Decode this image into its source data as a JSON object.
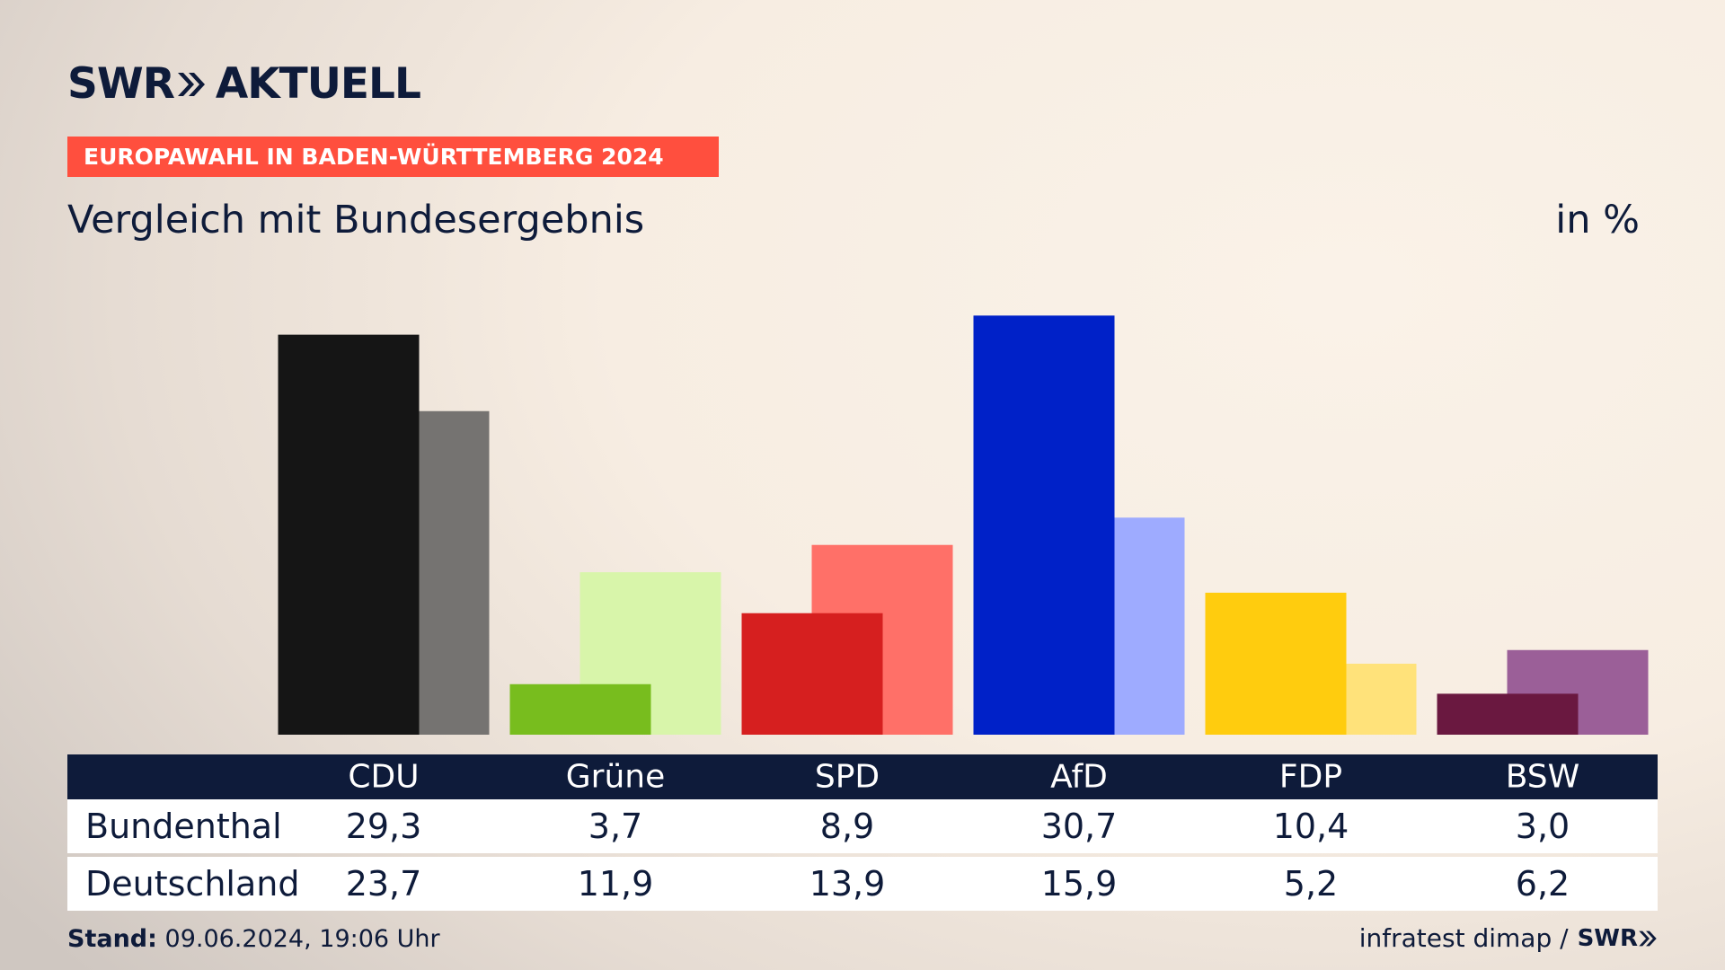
{
  "header": {
    "logo_text": "SWR",
    "logo_text2": "AKTUELL",
    "badge": "EUROPAWAHL IN BADEN-WÜRTTEMBERG 2024",
    "subtitle": "Vergleich mit Bundesergebnis",
    "unit": "in %"
  },
  "chart_data": {
    "type": "bar",
    "categories": [
      "CDU",
      "Grüne",
      "SPD",
      "AfD",
      "FDP",
      "BSW"
    ],
    "series": [
      {
        "name": "Bundenthal",
        "values": [
          29.3,
          3.7,
          8.9,
          30.7,
          10.4,
          3.0
        ]
      },
      {
        "name": "Deutschland",
        "values": [
          23.7,
          11.9,
          13.9,
          15.9,
          5.2,
          6.2
        ]
      }
    ],
    "display_values": {
      "Bundenthal": [
        "29,3",
        "3,7",
        "8,9",
        "30,7",
        "10,4",
        "3,0"
      ],
      "Deutschland": [
        "23,7",
        "11,9",
        "13,9",
        "15,9",
        "5,2",
        "6,2"
      ]
    },
    "colors": {
      "Bundenthal": [
        "#151515",
        "#78bd1e",
        "#d61f1f",
        "#0021c8",
        "#ffcc0e",
        "#6a1840"
      ],
      "Deutschland": [
        "#757371",
        "#d8f5aa",
        "#ff7068",
        "#9eabff",
        "#ffe27a",
        "#9b5f98"
      ]
    },
    "ylim": [
      0,
      31
    ]
  },
  "footer": {
    "stand_label": "Stand:",
    "stand_value": "09.06.2024, 19:06 Uhr",
    "source": "infratest dimap /",
    "source_logo": "SWR"
  }
}
